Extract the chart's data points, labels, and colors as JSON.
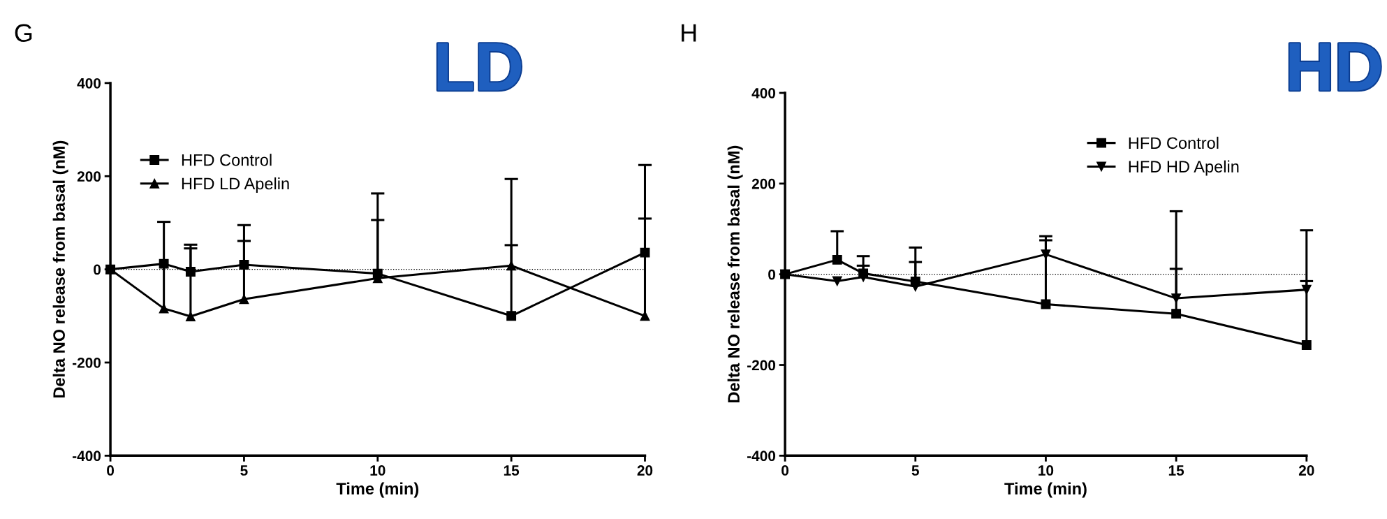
{
  "chart_data": [
    {
      "type": "line",
      "xlabel": "Time (min)",
      "ylabel": "Delta NO release from basal (nM)",
      "x": [
        0,
        2,
        3,
        5,
        10,
        15,
        20
      ],
      "xlim": [
        0,
        20
      ],
      "xticks": [
        0,
        5,
        10,
        15,
        20
      ],
      "ylim": [
        -400,
        400
      ],
      "yticks": [
        -400,
        -200,
        0,
        200,
        400
      ],
      "series": [
        {
          "name": "HFD Control",
          "color": "#000000",
          "marker": "square",
          "values": [
            0,
            12,
            -5,
            10,
            -9,
            -100,
            36
          ],
          "errors": [
            null,
            null,
            [
              -5,
              45
            ],
            [
              10,
              61
            ],
            [
              -9,
              106
            ],
            [
              -100,
              194
            ],
            [
              36,
              224
            ]
          ]
        },
        {
          "name": "HFD LD Apelin",
          "color": "#000000",
          "marker": "triangle",
          "values": [
            0,
            -84,
            -101,
            -64,
            -19,
            8,
            -100
          ],
          "errors": [
            null,
            [
              -84,
              102
            ],
            [
              -101,
              53
            ],
            [
              -64,
              95
            ],
            [
              -19,
              163
            ],
            [
              8,
              52
            ],
            [
              -100,
              109
            ]
          ]
        }
      ],
      "ref_lines": [
        {
          "axis": "y",
          "value": 0,
          "color": "#000000",
          "line_style": "dotted"
        }
      ],
      "annotations": [
        "G",
        "LD"
      ],
      "legend": "top left",
      "grid": false,
      "line_style": "solid"
    },
    {
      "type": "line",
      "xlabel": "Time (min)",
      "ylabel": "Delta NO release from basal (nM)",
      "x": [
        0,
        2,
        3,
        5,
        10,
        15,
        20
      ],
      "xlim": [
        0,
        20
      ],
      "xticks": [
        0,
        5,
        10,
        15,
        20
      ],
      "ylim": [
        -400,
        400
      ],
      "yticks": [
        -400,
        -200,
        0,
        200,
        400
      ],
      "series": [
        {
          "name": "HFD Control",
          "color": "#000000",
          "marker": "square",
          "values": [
            0,
            32,
            2,
            -16,
            -66,
            -87,
            -156
          ],
          "errors": [
            null,
            [
              32,
              95
            ],
            [
              2,
              19
            ],
            [
              -16,
              27
            ],
            [
              -66,
              75
            ],
            [
              -87,
              139
            ],
            [
              -156,
              97
            ]
          ]
        },
        {
          "name": "HFD HD Apelin",
          "color": "#000000",
          "marker": "triangle_down",
          "values": [
            0,
            -15,
            -6,
            -27,
            44,
            -53,
            -34
          ],
          "errors": [
            null,
            null,
            [
              -6,
              40
            ],
            [
              -27,
              59
            ],
            [
              44,
              84
            ],
            [
              -53,
              12
            ],
            [
              -34,
              -15
            ]
          ]
        }
      ],
      "ref_lines": [
        {
          "axis": "y",
          "value": 0,
          "color": "#000000",
          "line_style": "dotted"
        }
      ],
      "annotations": [
        "H",
        "HD"
      ],
      "legend": "top right",
      "grid": false,
      "line_style": "solid"
    }
  ]
}
